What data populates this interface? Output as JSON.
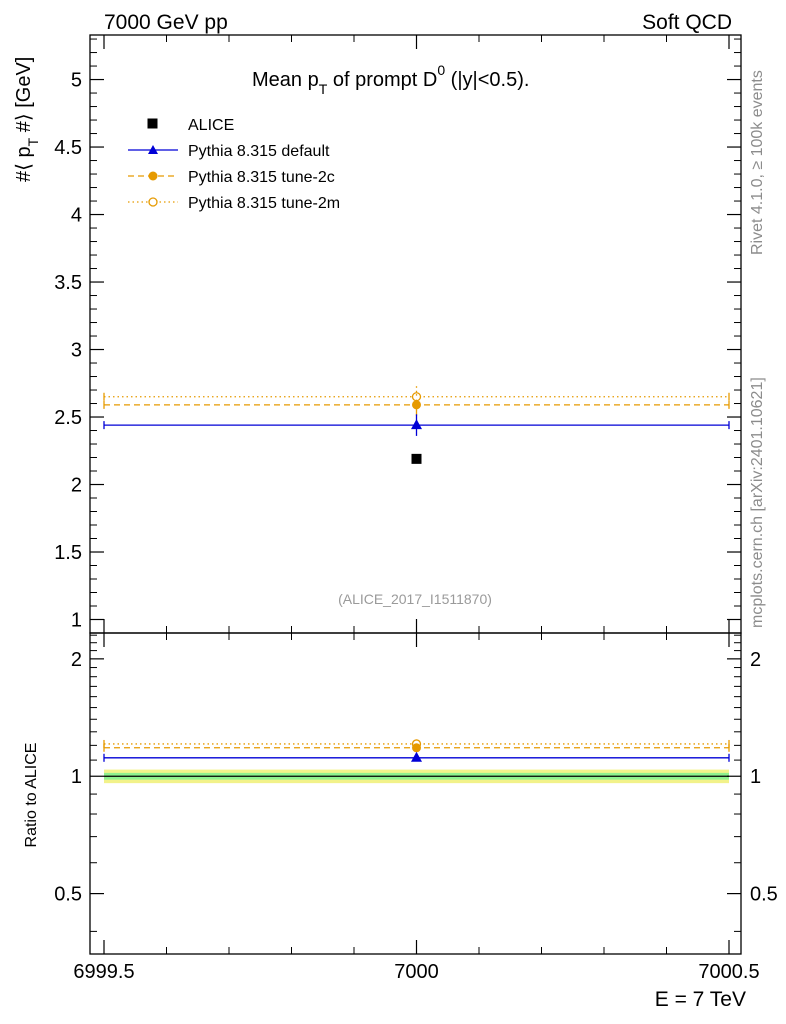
{
  "header": {
    "left": "7000 GeV pp",
    "right": "Soft QCD"
  },
  "side_labels": {
    "rivet": "Rivet 4.1.0, ≥ 100k events",
    "mcplots": "mcplots.cern.ch [arXiv:2401.10621]"
  },
  "colors": {
    "data": "#000000",
    "default": "#0000d6",
    "tune2c": "#e69a00",
    "tune2m": "#e69a00",
    "band_inner": "#8ef08e",
    "band_outer": "#f2f28a"
  },
  "chart_data": [
    {
      "type": "scatter",
      "panel": "main",
      "title": "Mean p_T of prompt D^0 (|y|<0.5).",
      "title_parts": {
        "pre": "Mean p",
        "sub": "T",
        "mid": " of prompt D",
        "sup": "0",
        "post": " (|y|<0.5)."
      },
      "ylabel": "#⟨ p_T #⟩ [GeV]",
      "ylabel_parts": {
        "pre": "#⟨ p",
        "sub": "T",
        "post": " #⟩ [GeV]"
      },
      "watermark": "(ALICE_2017_I1511870)",
      "xlim": [
        6999.5,
        7000.5
      ],
      "ylim": [
        0.9,
        5.33
      ],
      "yticks": [
        1,
        1.5,
        2,
        2.5,
        3,
        3.5,
        4,
        4.5,
        5
      ],
      "ytick_labels": [
        "1",
        "1.5",
        "2",
        "2.5",
        "3",
        "3.5",
        "4",
        "4.5",
        "5"
      ],
      "legend": [
        "ALICE",
        "Pythia 8.315 default",
        "Pythia 8.315 tune-2c",
        "Pythia 8.315 tune-2m"
      ],
      "series": [
        {
          "name": "ALICE",
          "key": "data",
          "marker": "square",
          "x": 7000,
          "y": 2.19,
          "err": 0.01,
          "line": "none"
        },
        {
          "name": "Pythia 8.315 default",
          "key": "default",
          "marker": "triangle",
          "x": 7000,
          "y": 2.44,
          "err": 0.08,
          "line": "solid"
        },
        {
          "name": "Pythia 8.315 tune-2c",
          "key": "tune2c",
          "marker": "circle",
          "x": 7000,
          "y": 2.59,
          "err": 0.08,
          "line": "dashed"
        },
        {
          "name": "Pythia 8.315 tune-2m",
          "key": "tune2m",
          "marker": "open-circle",
          "x": 7000,
          "y": 2.65,
          "err": 0.1,
          "line": "dotted"
        }
      ]
    },
    {
      "type": "scatter",
      "panel": "ratio",
      "ylabel": "Ratio to ALICE",
      "xlabel": "E = 7 TeV",
      "xlim": [
        6999.5,
        7000.5
      ],
      "ylim": [
        0.35,
        2.33
      ],
      "xticks": [
        6999.5,
        7000,
        7000.5
      ],
      "xtick_labels": [
        "6999.5",
        "7000",
        "7000.5"
      ],
      "yticks": [
        0.5,
        1,
        2
      ],
      "ytick_labels": [
        "0.5",
        "1",
        "2"
      ],
      "band_inner": [
        0.98,
        1.02
      ],
      "band_outer": [
        0.96,
        1.04
      ],
      "series": [
        {
          "name": "Pythia 8.315 default",
          "key": "default",
          "marker": "triangle",
          "x": 7000,
          "y": 1.115,
          "err": 0.02,
          "line": "solid"
        },
        {
          "name": "Pythia 8.315 tune-2c",
          "key": "tune2c",
          "marker": "circle",
          "x": 7000,
          "y": 1.183,
          "err": 0.02,
          "line": "dashed"
        },
        {
          "name": "Pythia 8.315 tune-2m",
          "key": "tune2m",
          "marker": "open-circle",
          "x": 7000,
          "y": 1.21,
          "err": 0.02,
          "line": "dotted"
        }
      ]
    }
  ]
}
